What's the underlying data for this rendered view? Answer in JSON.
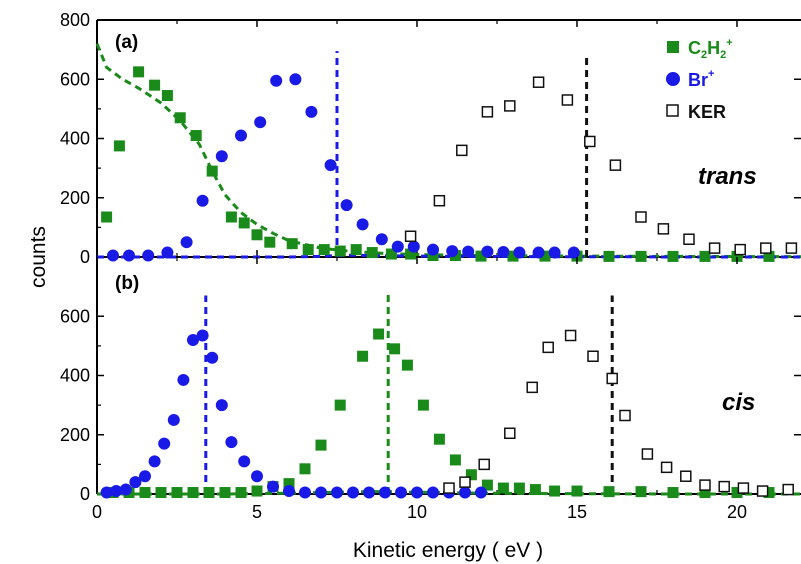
{
  "chart_data": [
    {
      "type": "scatter",
      "panel_label": "(a)",
      "annotation": "trans",
      "xlabel": "Kinetic energy ( eV )",
      "ylabel": "counts",
      "xlim": [
        0,
        22
      ],
      "ylim": [
        0,
        800
      ],
      "x_ticks": [
        0,
        5,
        10,
        15,
        20
      ],
      "y_ticks": [
        0,
        200,
        400,
        600,
        800
      ],
      "legend_position": "top-right",
      "series": [
        {
          "name": "C2H2+",
          "label_main": "C",
          "label_sub1": "2",
          "label_mid": "H",
          "label_sub2": "2",
          "label_sup": "+",
          "marker": "filled-square",
          "color": "#1a8a1a",
          "fit_color": "#1a8a1a",
          "x": [
            0.3,
            0.7,
            1.3,
            1.8,
            2.2,
            2.6,
            3.1,
            3.6,
            4.2,
            4.6,
            5.0,
            5.4,
            6.1,
            6.6,
            7.1,
            7.6,
            8.1,
            8.6,
            9.2,
            9.8,
            10.5,
            11.2,
            12.0,
            13.0,
            14.0,
            15.0,
            16.0,
            17.0,
            18.0,
            19.0,
            20.0,
            21.0
          ],
          "y": [
            135,
            375,
            625,
            580,
            545,
            470,
            410,
            290,
            135,
            115,
            75,
            50,
            45,
            25,
            25,
            20,
            25,
            15,
            10,
            10,
            5,
            5,
            3,
            3,
            3,
            3,
            2,
            2,
            2,
            2,
            2,
            2
          ],
          "fit": {
            "x": [
              0.0,
              0.3,
              0.8,
              1.3,
              2.0,
              2.6,
              3.2,
              3.6,
              4.0,
              4.5,
              5.0,
              5.5,
              6.0,
              7.0,
              8.0,
              9.0,
              10.0,
              12.0,
              15.0,
              18.0,
              22.0
            ],
            "y": [
              720,
              640,
              600,
              570,
              520,
              460,
              380,
              290,
              210,
              150,
              110,
              80,
              55,
              30,
              18,
              12,
              8,
              5,
              3,
              2,
              1
            ]
          }
        },
        {
          "name": "Br+",
          "label_main": "Br",
          "label_sup": "+",
          "marker": "filled-circle",
          "color": "#1a1ae6",
          "x": [
            0.5,
            1.0,
            1.6,
            2.2,
            2.8,
            3.3,
            3.9,
            4.5,
            5.1,
            5.6,
            6.2,
            6.7,
            7.3,
            7.8,
            8.3,
            8.9,
            9.4,
            9.9,
            10.5,
            11.1,
            11.6,
            12.2,
            12.7,
            13.2,
            13.8,
            14.3,
            14.9
          ],
          "y": [
            5,
            5,
            5,
            15,
            50,
            190,
            340,
            410,
            455,
            595,
            600,
            490,
            310,
            175,
            110,
            60,
            35,
            35,
            25,
            20,
            18,
            18,
            17,
            15,
            15,
            15,
            15
          ],
          "fit": {
            "x": [
              0,
              1.5,
              3.0,
              4.5,
              6.0,
              7.0,
              7.5,
              8.0,
              8.5,
              9.0,
              10,
              11,
              12,
              14,
              16,
              18,
              22
            ],
            "y": [
              0,
              0,
              0,
              0,
              0,
              2,
              5,
              6,
              5,
              4,
              3,
              2,
              2,
              1,
              1,
              0,
              0
            ]
          }
        },
        {
          "name": "KER",
          "label_main": "KER",
          "marker": "open-square",
          "color": "#111111",
          "x": [
            9.8,
            10.7,
            11.4,
            12.2,
            12.9,
            13.8,
            14.7,
            15.4,
            16.2,
            17.0,
            17.7,
            18.5,
            19.3,
            20.1,
            20.9,
            21.7
          ],
          "y": [
            70,
            190,
            360,
            490,
            510,
            590,
            530,
            390,
            310,
            135,
            95,
            60,
            30,
            25,
            30,
            30
          ]
        }
      ],
      "vlines": [
        {
          "x": 7.5,
          "color": "#1a1ae6",
          "y_top": 695
        },
        {
          "x": 15.3,
          "color": "#111111",
          "y_top": 685
        }
      ]
    },
    {
      "type": "scatter",
      "panel_label": "(b)",
      "annotation": "cis",
      "xlim": [
        0,
        22
      ],
      "ylim": [
        0,
        800
      ],
      "x_ticks": [
        0,
        5,
        10,
        15,
        20
      ],
      "y_ticks": [
        0,
        200,
        400,
        600
      ],
      "series": [
        {
          "name": "C2H2+",
          "marker": "filled-square",
          "color": "#1a8a1a",
          "x": [
            0.5,
            1.0,
            1.5,
            2.0,
            2.5,
            3.0,
            3.5,
            4.0,
            4.5,
            5.0,
            5.5,
            6.0,
            6.5,
            7.0,
            7.6,
            8.3,
            8.8,
            9.3,
            9.7,
            10.2,
            10.7,
            11.2,
            11.7,
            12.2,
            12.7,
            13.2,
            13.7,
            14.3,
            15.0,
            16.0,
            17.0,
            18.0,
            19.0,
            20.0,
            21.0
          ],
          "y": [
            5,
            5,
            5,
            5,
            5,
            5,
            5,
            5,
            5,
            10,
            25,
            35,
            85,
            165,
            300,
            465,
            540,
            490,
            435,
            300,
            185,
            115,
            65,
            30,
            20,
            20,
            15,
            10,
            10,
            8,
            8,
            5,
            5,
            5,
            5
          ],
          "fit": {
            "x": [
              0,
              4.0,
              5.0,
              6.0,
              6.5,
              7.0,
              7.5,
              8.0,
              8.5,
              9.0,
              9.5,
              10.0,
              10.5,
              11.0,
              12.0,
              13.0,
              15.0,
              18.0,
              22.0
            ],
            "y": [
              0,
              0,
              1,
              3,
              4,
              5,
              6,
              7,
              8,
              8,
              7,
              6,
              5,
              4,
              3,
              2,
              1,
              0,
              0
            ]
          }
        },
        {
          "name": "Br+",
          "marker": "filled-circle",
          "color": "#1a1ae6",
          "x": [
            0.3,
            0.6,
            0.9,
            1.2,
            1.5,
            1.8,
            2.1,
            2.4,
            2.7,
            3.0,
            3.3,
            3.6,
            3.9,
            4.2,
            4.6,
            5.0,
            5.5,
            6.0,
            6.5,
            7.0,
            7.5,
            8.0,
            8.5,
            9.0,
            9.5,
            10.0,
            10.5,
            11.0,
            11.5,
            12.0
          ],
          "y": [
            5,
            10,
            15,
            40,
            60,
            110,
            170,
            250,
            385,
            520,
            535,
            460,
            300,
            175,
            110,
            60,
            25,
            10,
            5,
            5,
            5,
            5,
            5,
            5,
            5,
            5,
            5,
            5,
            5,
            5
          ]
        },
        {
          "name": "KER",
          "marker": "open-square",
          "color": "#111111",
          "x": [
            11.0,
            11.5,
            12.1,
            12.9,
            13.6,
            14.1,
            14.8,
            15.5,
            16.1,
            16.5,
            17.2,
            17.8,
            18.4,
            19.0,
            19.6,
            20.2,
            20.8,
            21.6
          ],
          "y": [
            20,
            40,
            100,
            205,
            360,
            495,
            535,
            465,
            390,
            265,
            135,
            90,
            60,
            30,
            25,
            20,
            10,
            15
          ]
        }
      ],
      "vlines": [
        {
          "x": 3.4,
          "color": "#1a1ae6",
          "y_top": 670
        },
        {
          "x": 9.1,
          "color": "#1a8a1a",
          "y_top": 680
        },
        {
          "x": 16.1,
          "color": "#111111",
          "y_top": 670
        }
      ]
    }
  ]
}
